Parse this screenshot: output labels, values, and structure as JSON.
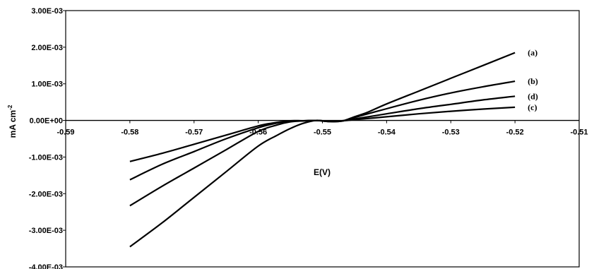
{
  "chart_data": {
    "type": "line",
    "xlabel": "E(V)",
    "ylabel": "mA cm",
    "ylabel_superscript": "-2",
    "xlim": [
      -0.59,
      -0.51
    ],
    "ylim": [
      -0.004,
      0.003
    ],
    "x_ticks": [
      -0.59,
      -0.58,
      -0.57,
      -0.56,
      -0.55,
      -0.54,
      -0.53,
      -0.52,
      -0.51
    ],
    "x_tick_labels": [
      "-0.59",
      "-0.58",
      "-0.57",
      "-0.56",
      "-0.55",
      "-0.54",
      "-0.53",
      "-0.52",
      "-0.51"
    ],
    "y_ticks": [
      0.003,
      0.002,
      0.001,
      0,
      -0.001,
      -0.002,
      -0.003,
      -0.004
    ],
    "y_tick_labels": [
      "3.00E-03",
      "2.00E-03",
      "1.00E-03",
      "0.00E+00",
      "-1.00E-03",
      "-2.00E-03",
      "-3.00E-03",
      "-4.00E-03"
    ],
    "grid": false,
    "series": [
      {
        "name": "(a)",
        "x": [
          -0.58,
          -0.575,
          -0.57,
          -0.565,
          -0.56,
          -0.557,
          -0.555,
          -0.553,
          -0.551,
          -0.549,
          -0.547,
          -0.545,
          -0.543,
          -0.54,
          -0.535,
          -0.53,
          -0.525,
          -0.52
        ],
        "y": [
          -0.00345,
          -0.0028,
          -0.0021,
          -0.0014,
          -0.0007,
          -0.0004,
          -0.00022,
          -8e-05,
          0,
          -3e-05,
          -2e-05,
          0.0001,
          0.00022,
          0.00045,
          0.0008,
          0.00115,
          0.0015,
          0.00185
        ]
      },
      {
        "name": "(b)",
        "x": [
          -0.58,
          -0.575,
          -0.57,
          -0.565,
          -0.56,
          -0.557,
          -0.555,
          -0.553,
          -0.551,
          -0.549,
          -0.547,
          -0.545,
          -0.54,
          -0.535,
          -0.53,
          -0.525,
          -0.52
        ],
        "y": [
          -0.00233,
          -0.0018,
          -0.0013,
          -0.0008,
          -0.0003,
          -0.00012,
          -4e-05,
          -1e-05,
          0,
          -3e-05,
          -2e-05,
          8e-05,
          0.00032,
          0.00055,
          0.00075,
          0.00092,
          0.00107
        ]
      },
      {
        "name": "(c)",
        "x": [
          -0.58,
          -0.575,
          -0.57,
          -0.565,
          -0.56,
          -0.557,
          -0.555,
          -0.553,
          -0.551,
          -0.549,
          -0.547,
          -0.545,
          -0.54,
          -0.535,
          -0.53,
          -0.525,
          -0.52
        ],
        "y": [
          -0.00112,
          -0.0009,
          -0.00065,
          -0.0004,
          -0.00015,
          -5e-05,
          -1e-05,
          -1e-05,
          0,
          -2e-05,
          -1e-05,
          2e-05,
          0.0001,
          0.00018,
          0.00025,
          0.00031,
          0.00036
        ]
      },
      {
        "name": "(d)",
        "x": [
          -0.58,
          -0.575,
          -0.57,
          -0.565,
          -0.56,
          -0.557,
          -0.555,
          -0.553,
          -0.551,
          -0.549,
          -0.547,
          -0.545,
          -0.54,
          -0.535,
          -0.53,
          -0.525,
          -0.52
        ],
        "y": [
          -0.00162,
          -0.0012,
          -0.00085,
          -0.0005,
          -0.0002,
          -7e-05,
          -1e-05,
          -1e-05,
          0,
          -2e-05,
          -1e-05,
          4e-05,
          0.00018,
          0.00032,
          0.00044,
          0.00056,
          0.00066
        ]
      }
    ]
  }
}
